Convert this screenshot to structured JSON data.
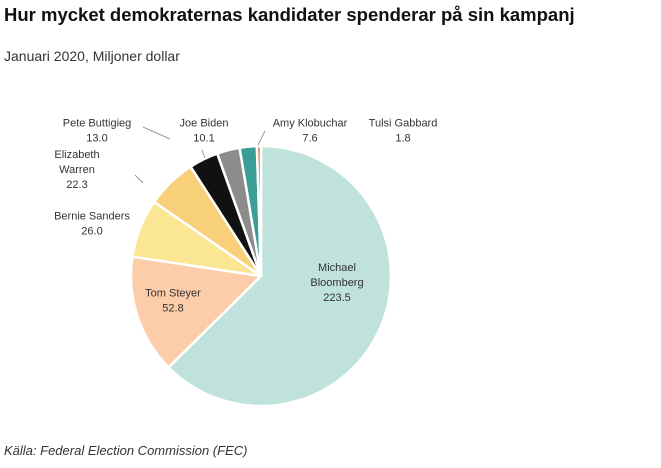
{
  "chart_data": {
    "type": "pie",
    "title": "Hur mycket demokraternas kandidater spenderar på sin kampanj",
    "subtitle": "Januari 2020, Miljoner dollar",
    "source": "Källa: Federal Election Commission (FEC)",
    "start": "top",
    "direction": "clockwise",
    "slices": [
      {
        "label": [
          "Michael",
          "Bloomberg"
        ],
        "value": 223.5,
        "value_label": "223.5",
        "color": "#bfe2dc"
      },
      {
        "label": [
          "Tom Steyer"
        ],
        "value": 52.8,
        "value_label": "52.8",
        "color": "#fdcca8"
      },
      {
        "label": [
          "Bernie Sanders"
        ],
        "value": 26.0,
        "value_label": "26.0",
        "color": "#fbe694"
      },
      {
        "label": [
          "Elizabeth",
          "Warren"
        ],
        "value": 22.3,
        "value_label": "22.3",
        "color": "#f9d07a"
      },
      {
        "label": [
          "Pete Buttigieg"
        ],
        "value": 13.0,
        "value_label": "13.0",
        "color": "#111111"
      },
      {
        "label": [
          "Joe Biden"
        ],
        "value": 10.1,
        "value_label": "10.1",
        "color": "#8c8c8c"
      },
      {
        "label": [
          "Amy Klobuchar"
        ],
        "value": 7.6,
        "value_label": "7.6",
        "color": "#3a9e96"
      },
      {
        "label": [
          "Tulsi Gabbard"
        ],
        "value": 1.8,
        "value_label": "1.8",
        "color": "#f0703a"
      }
    ]
  }
}
